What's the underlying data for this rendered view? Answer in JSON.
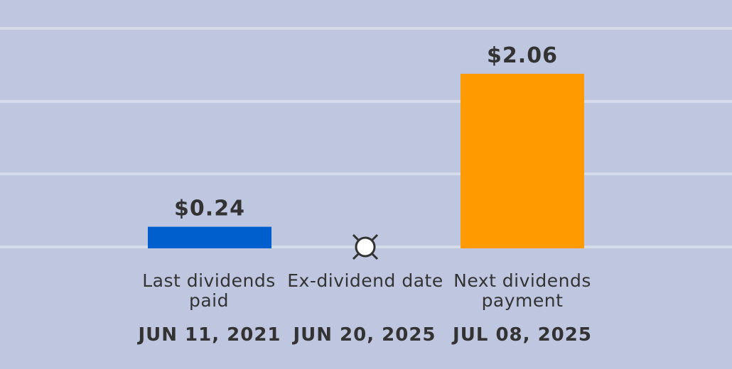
{
  "chart_data": {
    "type": "bar",
    "categories": [
      "Last dividends paid",
      "Ex-dividend date",
      "Next dividends payment"
    ],
    "dates": [
      "JUN 11, 2021",
      "JUN 20, 2025",
      "JUL 08, 2025"
    ],
    "values": [
      0.24,
      null,
      2.06
    ],
    "value_labels": [
      "$0.24",
      null,
      "$2.06"
    ],
    "colors": [
      "#005fcc",
      null,
      "#ff9a00"
    ],
    "ylim": [
      0,
      2.6
    ],
    "yticks": [
      0,
      0.87,
      1.73,
      2.6
    ],
    "grid": true
  }
}
